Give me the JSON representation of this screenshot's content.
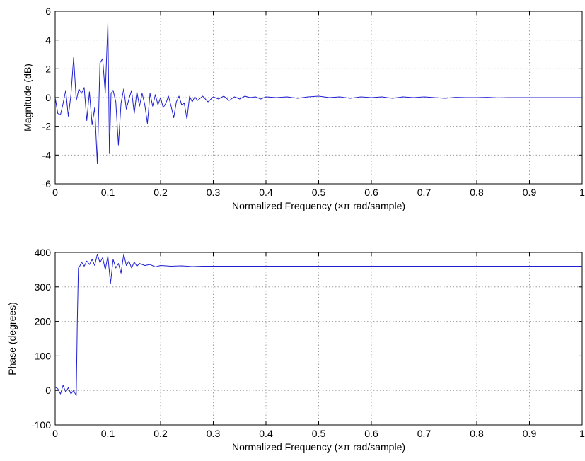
{
  "chart_data": [
    {
      "type": "line",
      "xlabel": "Normalized Frequency  (×π rad/sample)",
      "ylabel": "Magnitude (dB)",
      "xlim": [
        0,
        1
      ],
      "ylim": [
        -6,
        6
      ],
      "xticks": [
        0,
        0.1,
        0.2,
        0.3,
        0.4,
        0.5,
        0.6,
        0.7,
        0.8,
        0.9,
        1
      ],
      "xtick_labels": [
        "0",
        "0.1",
        "0.2",
        "0.3",
        "0.4",
        "0.5",
        "0.6",
        "0.7",
        "0.8",
        "0.9",
        "1"
      ],
      "yticks": [
        -6,
        -4,
        -2,
        0,
        2,
        4,
        6
      ],
      "ytick_labels": [
        "-6",
        "-4",
        "-2",
        "0",
        "2",
        "4",
        "6"
      ],
      "grid": true,
      "color": "#1f1fd0",
      "x": [
        0,
        0.005,
        0.01,
        0.015,
        0.02,
        0.025,
        0.03,
        0.035,
        0.04,
        0.045,
        0.05,
        0.055,
        0.06,
        0.065,
        0.07,
        0.075,
        0.08,
        0.085,
        0.09,
        0.095,
        0.1,
        0.103,
        0.106,
        0.11,
        0.115,
        0.12,
        0.125,
        0.13,
        0.135,
        0.14,
        0.145,
        0.15,
        0.155,
        0.16,
        0.165,
        0.17,
        0.175,
        0.18,
        0.185,
        0.19,
        0.195,
        0.2,
        0.205,
        0.21,
        0.215,
        0.22,
        0.225,
        0.23,
        0.235,
        0.24,
        0.245,
        0.25,
        0.255,
        0.26,
        0.265,
        0.27,
        0.28,
        0.29,
        0.3,
        0.31,
        0.32,
        0.33,
        0.34,
        0.35,
        0.36,
        0.37,
        0.38,
        0.39,
        0.4,
        0.42,
        0.44,
        0.46,
        0.48,
        0.5,
        0.52,
        0.54,
        0.56,
        0.58,
        0.6,
        0.62,
        0.64,
        0.66,
        0.68,
        0.7,
        0.72,
        0.74,
        0.76,
        0.78,
        0.8,
        0.82,
        0.84,
        0.86,
        0.88,
        0.9,
        0.92,
        0.94,
        0.96,
        0.98,
        1
      ],
      "y": [
        0,
        -1.1,
        -1.2,
        -0.4,
        0.5,
        -1.3,
        0.2,
        2.8,
        -0.2,
        0.6,
        0.3,
        0.7,
        -1.6,
        0.4,
        -1.9,
        -0.7,
        -4.6,
        2.4,
        2.7,
        0.3,
        5.2,
        -3.9,
        0.3,
        0.5,
        -0.3,
        -3.3,
        -0.4,
        0.6,
        -0.8,
        -0.1,
        0.5,
        -1.1,
        0.4,
        -0.6,
        0.3,
        -0.5,
        -1.8,
        0.3,
        -0.6,
        0.2,
        -0.5,
        0,
        -0.7,
        -0.4,
        0.1,
        -0.6,
        -1.4,
        -0.3,
        0.1,
        -0.5,
        -0.4,
        -1.5,
        0.1,
        -0.3,
        0.05,
        -0.2,
        0.1,
        -0.3,
        0.05,
        -0.1,
        0.1,
        -0.2,
        0.05,
        -0.1,
        0.1,
        0,
        0.05,
        -0.1,
        0.05,
        0,
        0.05,
        -0.05,
        0.05,
        0.1,
        0,
        0.05,
        -0.05,
        0.05,
        0,
        0.05,
        -0.05,
        0.05,
        0,
        0.05,
        0,
        -0.05,
        0.02,
        0,
        0,
        0.02,
        -0.02,
        0,
        0,
        0,
        0,
        0,
        0,
        0,
        0
      ]
    },
    {
      "type": "line",
      "xlabel": "Normalized Frequency  (×π rad/sample)",
      "ylabel": "Phase (degrees)",
      "xlim": [
        0,
        1
      ],
      "ylim": [
        -100,
        400
      ],
      "xticks": [
        0,
        0.1,
        0.2,
        0.3,
        0.4,
        0.5,
        0.6,
        0.7,
        0.8,
        0.9,
        1
      ],
      "xtick_labels": [
        "0",
        "0.1",
        "0.2",
        "0.3",
        "0.4",
        "0.5",
        "0.6",
        "0.7",
        "0.8",
        "0.9",
        "1"
      ],
      "yticks": [
        -100,
        0,
        100,
        200,
        300,
        400
      ],
      "ytick_labels": [
        "-100",
        "0",
        "100",
        "200",
        "300",
        "400"
      ],
      "grid": true,
      "color": "#1f1fd0",
      "x": [
        0,
        0.005,
        0.01,
        0.015,
        0.02,
        0.025,
        0.03,
        0.035,
        0.04,
        0.042,
        0.044,
        0.046,
        0.05,
        0.055,
        0.06,
        0.065,
        0.07,
        0.075,
        0.08,
        0.085,
        0.09,
        0.095,
        0.1,
        0.105,
        0.11,
        0.115,
        0.12,
        0.125,
        0.13,
        0.135,
        0.14,
        0.145,
        0.15,
        0.155,
        0.16,
        0.17,
        0.18,
        0.19,
        0.2,
        0.22,
        0.24,
        0.26,
        0.28,
        0.3,
        0.35,
        0.4,
        0.5,
        0.6,
        0.7,
        0.8,
        0.9,
        1
      ],
      "y": [
        10,
        5,
        -10,
        15,
        -5,
        8,
        -10,
        0,
        -15,
        200,
        355,
        358,
        372,
        360,
        375,
        365,
        380,
        362,
        395,
        370,
        385,
        350,
        390,
        310,
        380,
        355,
        368,
        340,
        395,
        362,
        375,
        355,
        372,
        360,
        368,
        362,
        365,
        358,
        362,
        360,
        361,
        359,
        360,
        360,
        360,
        360,
        360,
        360,
        360,
        360,
        360,
        360
      ]
    }
  ]
}
